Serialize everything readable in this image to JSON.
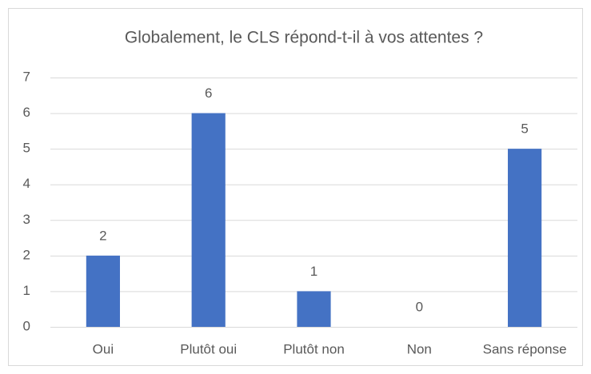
{
  "chart_data": {
    "type": "bar",
    "title": "Globalement, le CLS répond-t-il à vos attentes ?",
    "categories": [
      "Oui",
      "Plutôt oui",
      "Plutôt non",
      "Non",
      "Sans réponse"
    ],
    "values": [
      2,
      6,
      1,
      0,
      5
    ],
    "color": "#4472c4",
    "ylim": [
      0,
      7
    ],
    "yticks": [
      0,
      1,
      2,
      3,
      4,
      5,
      6,
      7
    ],
    "grid": true
  }
}
